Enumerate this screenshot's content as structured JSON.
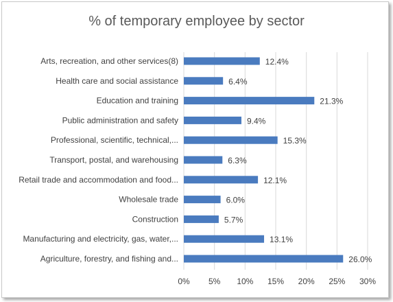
{
  "chart_data": {
    "type": "bar",
    "orientation": "horizontal",
    "title": "% of temporary employee by sector",
    "xlabel": "",
    "ylabel": "",
    "categories": [
      "Arts, recreation, and other services(8)",
      "Health care and social assistance",
      "Education and training",
      "Public administration and safety",
      "Professional, scientific, technical,...",
      "Transport, postal, and warehousing",
      "Retail trade and accommodation and food...",
      "Wholesale trade",
      "Construction",
      "Manufacturing and electricity, gas, water,...",
      "Agriculture, forestry, and fishing and..."
    ],
    "values": [
      12.4,
      6.4,
      21.3,
      9.4,
      15.3,
      6.3,
      12.1,
      6.0,
      5.7,
      13.1,
      26.0
    ],
    "value_labels": [
      "12.4%",
      "6.4%",
      "21.3%",
      "9.4%",
      "15.3%",
      "6.3%",
      "12.1%",
      "6.0%",
      "5.7%",
      "13.1%",
      "26.0%"
    ],
    "xlim": [
      0,
      30
    ],
    "x_ticks": [
      "0%",
      "5%",
      "10%",
      "15%",
      "20%",
      "25%",
      "30%"
    ],
    "grid": true,
    "legend": "none",
    "bar_color": "#4a7bbf",
    "grid_color": "#d9d9d9"
  }
}
